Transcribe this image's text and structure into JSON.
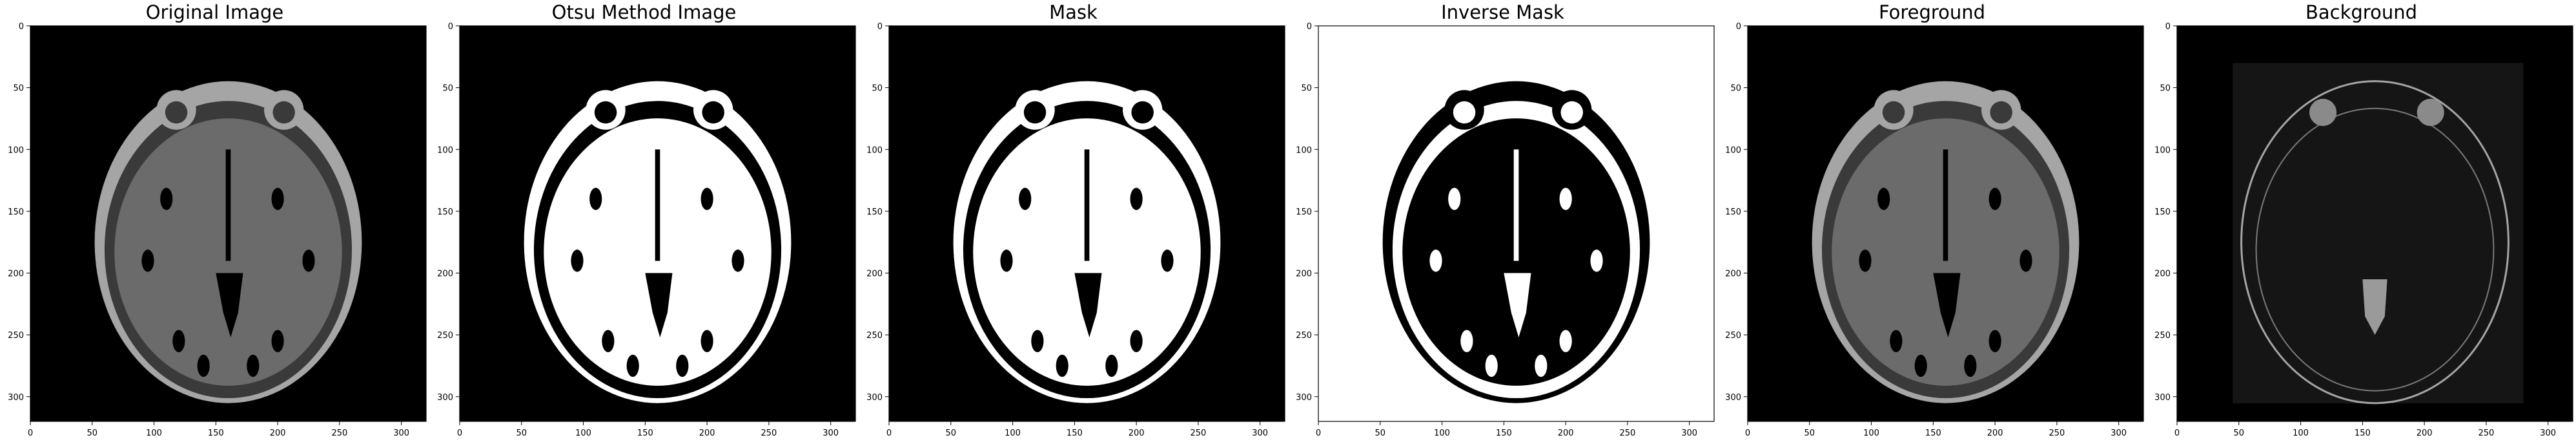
{
  "figure": {
    "panels": [
      {
        "id": "original",
        "title": "Original Image",
        "mode": "gray"
      },
      {
        "id": "otsu",
        "title": "Otsu Method Image",
        "mode": "binary"
      },
      {
        "id": "mask",
        "title": "Mask",
        "mode": "binary"
      },
      {
        "id": "inverse",
        "title": "Inverse Mask",
        "mode": "inverse"
      },
      {
        "id": "foreground",
        "title": "Foreground",
        "mode": "gray"
      },
      {
        "id": "background",
        "title": "Background",
        "mode": "edges"
      }
    ],
    "x_ticks": [
      0,
      50,
      100,
      150,
      200,
      250,
      300
    ],
    "y_ticks": [
      0,
      50,
      100,
      150,
      200,
      250,
      300
    ],
    "xlim": [
      0,
      320
    ],
    "ylim": [
      0,
      320
    ],
    "colors": {
      "frame": "#000000",
      "black": "#000000",
      "white": "#ffffff",
      "gray_skull": "#a5a5a5",
      "gray_brain": "#6b6b6b",
      "gray_dark": "#3a3a3a"
    }
  }
}
